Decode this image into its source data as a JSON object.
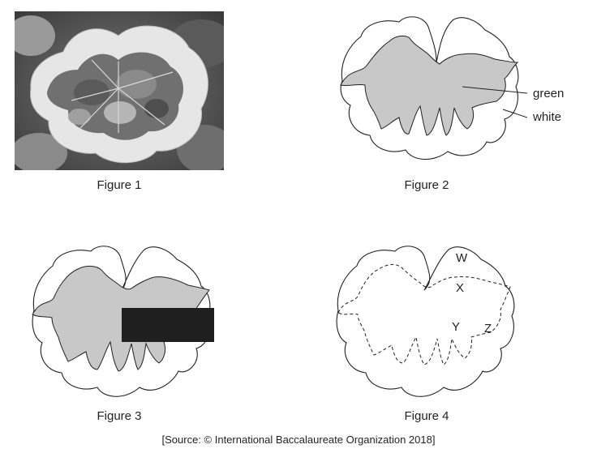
{
  "figures": [
    {
      "caption": "Figure 1"
    },
    {
      "caption": "Figure 2",
      "labels": {
        "green": "green",
        "white": "white"
      }
    },
    {
      "caption": "Figure 3"
    },
    {
      "caption": "Figure 4",
      "labels": {
        "w": "W",
        "x": "X",
        "y": "Y",
        "z": "Z"
      }
    }
  ],
  "source": "[Source: © International Baccalaureate Organization 2018]",
  "colors": {
    "green_region": "#c8c8c8",
    "outline": "#231f20",
    "mask": "#1f1f1f"
  }
}
